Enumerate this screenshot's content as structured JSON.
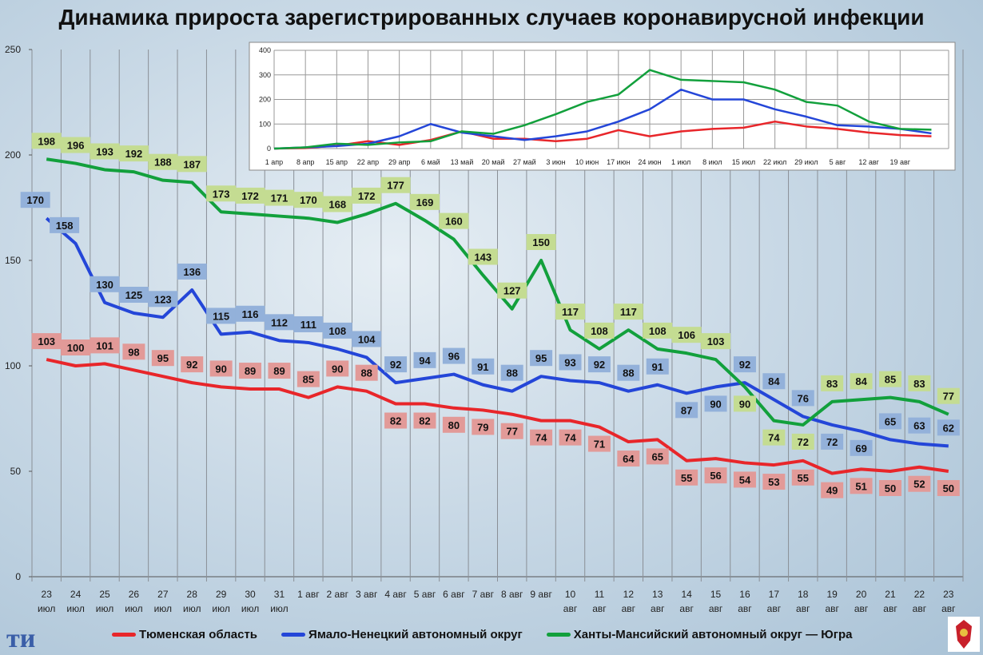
{
  "title": "Динамика прироста зарегистрированных случаев коронавирусной инфекции",
  "chart_data": [
    {
      "type": "line",
      "title": "Динамика прироста зарегистрированных случаев коронавирусной инфекции",
      "categories": [
        [
          "23",
          "июл"
        ],
        [
          "24",
          "июл"
        ],
        [
          "25",
          "июл"
        ],
        [
          "26",
          "июл"
        ],
        [
          "27",
          "июл"
        ],
        [
          "28",
          "июл"
        ],
        [
          "29",
          "июл"
        ],
        [
          "30",
          "июл"
        ],
        [
          "31",
          "июл"
        ],
        [
          "1 авг"
        ],
        [
          "2 авг"
        ],
        [
          "3 авг"
        ],
        [
          "4 авг"
        ],
        [
          "5 авг"
        ],
        [
          "6 авг"
        ],
        [
          "7 авг"
        ],
        [
          "8 авг"
        ],
        [
          "9 авг"
        ],
        [
          "10",
          "авг"
        ],
        [
          "11",
          "авг"
        ],
        [
          "12",
          "авг"
        ],
        [
          "13",
          "авг"
        ],
        [
          "14",
          "авг"
        ],
        [
          "15",
          "авг"
        ],
        [
          "16",
          "авг"
        ],
        [
          "17",
          "авг"
        ],
        [
          "18",
          "авг"
        ],
        [
          "19",
          "авг"
        ],
        [
          "20",
          "авг"
        ],
        [
          "21",
          "авг"
        ],
        [
          "22",
          "авг"
        ],
        [
          "23",
          "авг"
        ]
      ],
      "ylim": [
        0,
        250
      ],
      "yticks": [
        0,
        50,
        100,
        150,
        200,
        250
      ],
      "grid": true,
      "legend": "bottom",
      "series": [
        {
          "name": "Тюменская область",
          "color": "#e8262a",
          "label_bg": "#e29a98",
          "values": [
            103,
            100,
            101,
            98,
            95,
            92,
            90,
            89,
            89,
            85,
            90,
            88,
            82,
            82,
            80,
            79,
            77,
            74,
            74,
            71,
            64,
            65,
            55,
            56,
            54,
            53,
            55,
            49,
            51,
            50,
            52,
            50
          ]
        },
        {
          "name": "Ямало-Ненецкий автономный округ",
          "color": "#2446d8",
          "label_bg": "#93b1da",
          "values": [
            170,
            158,
            130,
            125,
            123,
            136,
            115,
            116,
            112,
            111,
            108,
            104,
            92,
            94,
            96,
            91,
            88,
            95,
            93,
            92,
            88,
            91,
            87,
            90,
            92,
            84,
            76,
            72,
            69,
            65,
            63,
            62
          ]
        },
        {
          "name": "Ханты-Мансийский автономный округ — Югра",
          "color": "#12a03c",
          "label_bg": "#c4dc92",
          "values": [
            198,
            196,
            193,
            192,
            188,
            187,
            173,
            172,
            171,
            170,
            168,
            172,
            177,
            169,
            160,
            143,
            127,
            150,
            117,
            108,
            117,
            108,
            106,
            103,
            90,
            74,
            72,
            83,
            84,
            85,
            83,
            77
          ]
        }
      ]
    },
    {
      "type": "line",
      "categories": [
        "1 апр",
        "8 апр",
        "15 апр",
        "22 апр",
        "29 апр",
        "6 май",
        "13 май",
        "20 май",
        "27 май",
        "3 июн",
        "10 июн",
        "17 июн",
        "24 июн",
        "1 июл",
        "8 июл",
        "15 июл",
        "22 июл",
        "29 июл",
        "5 авг",
        "12 авг",
        "19 авг",
        ""
      ],
      "ylim": [
        0,
        400
      ],
      "yticks": [
        0,
        100,
        200,
        300,
        400
      ],
      "grid": true,
      "series": [
        {
          "name": "Тюменская область",
          "color": "#e8262a",
          "values": [
            0,
            2,
            12,
            30,
            15,
            35,
            70,
            40,
            40,
            30,
            40,
            75,
            50,
            70,
            80,
            85,
            110,
            90,
            80,
            65,
            55,
            50
          ]
        },
        {
          "name": "Ямало-Ненецкий автономный округ",
          "color": "#2446d8",
          "values": [
            0,
            5,
            10,
            20,
            50,
            100,
            65,
            50,
            35,
            50,
            70,
            110,
            160,
            240,
            200,
            200,
            160,
            130,
            95,
            90,
            80,
            62
          ]
        },
        {
          "name": "Ханты-Мансийский автономный округ — Югра",
          "color": "#12a03c",
          "values": [
            0,
            5,
            20,
            15,
            25,
            30,
            70,
            60,
            95,
            140,
            190,
            220,
            320,
            280,
            275,
            270,
            240,
            190,
            175,
            110,
            80,
            77
          ]
        }
      ]
    }
  ]
}
